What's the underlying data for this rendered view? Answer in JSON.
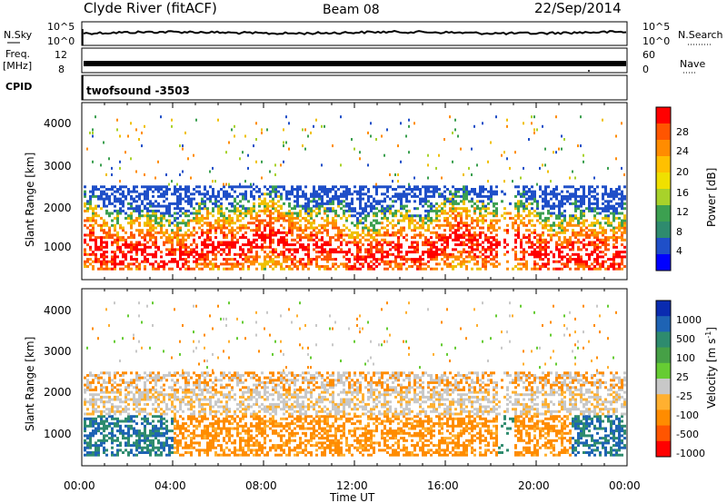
{
  "header": {
    "station": "Clyde River (fitACF)",
    "beam": "Beam 08",
    "date": "22/Sep/2014"
  },
  "strips": {
    "nsky_label": "N.Sky",
    "nsearch_label": "N.Search",
    "noise_ticks": [
      "10^5",
      "10^0"
    ],
    "freq_label_1": "Freq.",
    "freq_label_2": "[MHz]",
    "freq_ticks": [
      "12",
      "8"
    ],
    "nave_label": "Nave",
    "nave_ticks": [
      "60",
      "0"
    ],
    "cpid_label": "CPID",
    "cpid_value": "twofsound  -3503"
  },
  "chart_data": [
    {
      "type": "heatmap",
      "name": "power",
      "ylabel": "Slant Range [km]",
      "yticks": [
        "4000",
        "3000",
        "2000",
        "1000"
      ],
      "ylim": [
        200,
        4600
      ],
      "colorbar": {
        "title": "Power [dB]",
        "ticks": [
          "28",
          "24",
          "20",
          "16",
          "12",
          "8",
          "4"
        ],
        "colors": [
          "#ff0000",
          "#ff5500",
          "#ff8c00",
          "#ffc000",
          "#f0e000",
          "#a8d22a",
          "#3ca050",
          "#2e8b6e",
          "#1f4fc8",
          "#0000ff"
        ]
      }
    },
    {
      "type": "heatmap",
      "name": "velocity",
      "ylabel": "Slant Range [km]",
      "yticks": [
        "4000",
        "3000",
        "2000",
        "1000"
      ],
      "ylim": [
        200,
        4600
      ],
      "colorbar": {
        "title": "Velocity [m s^-1]",
        "ticks": [
          "1000",
          "500",
          "100",
          "25",
          "-25",
          "-100",
          "-500",
          "-1000"
        ],
        "colors": [
          "#0a2bb0",
          "#1e63b4",
          "#2e8b6e",
          "#46a046",
          "#66cc33",
          "#c8c8c8",
          "#ffb030",
          "#ff8c00",
          "#ff5500",
          "#ff0000"
        ]
      }
    }
  ],
  "xaxis": {
    "label": "Time UT",
    "ticks": [
      "00:00",
      "04:00",
      "08:00",
      "12:00",
      "16:00",
      "20:00",
      "00:00"
    ]
  }
}
